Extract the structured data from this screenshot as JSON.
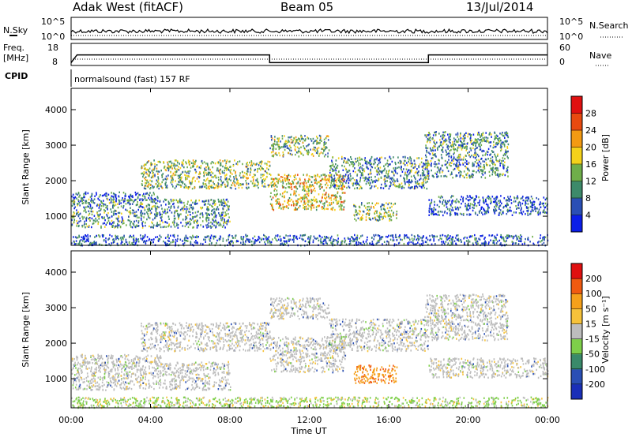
{
  "header": {
    "station": "Adak West (fitACF)",
    "beam": "Beam 05",
    "date": "13/Jul/2014"
  },
  "status_panel": {
    "left_labels": [
      "N.Sky",
      "Freq.",
      "[MHz]",
      "CPID"
    ],
    "right_labels": [
      "N.Search",
      "Nave"
    ],
    "nsky_ticks": [
      "10^5",
      "10^0"
    ],
    "nsearch_ticks": [
      "10^5",
      "10^0"
    ],
    "freq_ticks": [
      "18",
      "8"
    ],
    "nave_ticks": [
      "60",
      "0"
    ],
    "cpid_text": "normalsound (fast) 157 RF"
  },
  "x_axis": {
    "label": "Time UT",
    "ticks": [
      "00:00",
      "04:00",
      "08:00",
      "12:00",
      "16:00",
      "20:00",
      "00:00"
    ]
  },
  "power_panel": {
    "y_label": "Slant Range [km]",
    "y_ticks": [
      "4000",
      "3000",
      "2000",
      "1000"
    ],
    "colorbar_label": "Power [dB]",
    "colorbar_ticks": [
      "28",
      "24",
      "20",
      "16",
      "12",
      "8",
      "4"
    ]
  },
  "velocity_panel": {
    "y_label": "Slant Range [km]",
    "y_ticks": [
      "4000",
      "3000",
      "2000",
      "1000"
    ],
    "colorbar_label": "Velocity [m s⁻¹]",
    "colorbar_ticks": [
      "200",
      "100",
      "50",
      "15",
      "-15",
      "-50",
      "-100",
      "-200"
    ]
  },
  "chart_data": [
    {
      "type": "line",
      "panel": "frequency",
      "x_unit": "hours UT",
      "y_unit": "MHz",
      "ylim": [
        8,
        18
      ],
      "x": [
        0,
        0.3,
        10.0,
        10.0,
        18.0,
        18.0,
        24
      ],
      "y": [
        10,
        13.5,
        13.5,
        10,
        10,
        13.5,
        13.5
      ]
    },
    {
      "type": "heatmap",
      "panel": "power",
      "x_unit": "hours UT",
      "y_unit": "km",
      "xlim": [
        0,
        24
      ],
      "ylim": [
        180,
        4600
      ],
      "colorbar": {
        "unit": "dB",
        "ticks": [
          4,
          8,
          12,
          16,
          20,
          24,
          28
        ],
        "colors": [
          "#0b1ee8",
          "#2a4fb5",
          "#3d8a6a",
          "#6fae4a",
          "#f4d21a",
          "#f39a12",
          "#e84a10",
          "#e01010"
        ]
      },
      "echo_bands": [
        {
          "t0": 0.0,
          "t1": 4.5,
          "r0": 1450,
          "r1": 1700,
          "level": 1
        },
        {
          "t0": 0.0,
          "t1": 8.0,
          "r0": 700,
          "r1": 1500,
          "level": 2
        },
        {
          "t0": 3.5,
          "t1": 10.0,
          "r0": 1800,
          "r1": 2600,
          "level": 3
        },
        {
          "t0": 10.0,
          "t1": 13.8,
          "r0": 1200,
          "r1": 2200,
          "level": 4
        },
        {
          "t0": 10.0,
          "t1": 13.0,
          "r0": 2700,
          "r1": 3300,
          "level": 3
        },
        {
          "t0": 13.0,
          "t1": 18.0,
          "r0": 1800,
          "r1": 2700,
          "level": 2
        },
        {
          "t0": 14.2,
          "t1": 16.4,
          "r0": 900,
          "r1": 1400,
          "level": 3
        },
        {
          "t0": 18.0,
          "t1": 24.0,
          "r0": 1050,
          "r1": 1600,
          "level": 1
        },
        {
          "t0": 17.8,
          "t1": 22.0,
          "r0": 2100,
          "r1": 3400,
          "level": 2
        },
        {
          "t0": 0.0,
          "t1": 24.0,
          "r0": 200,
          "r1": 500,
          "level": 1
        }
      ]
    },
    {
      "type": "heatmap",
      "panel": "velocity",
      "x_unit": "hours UT",
      "y_unit": "km",
      "xlim": [
        0,
        24
      ],
      "ylim": [
        180,
        4600
      ],
      "colorbar": {
        "unit": "m s^-1",
        "ticks": [
          -200,
          -100,
          -50,
          -15,
          15,
          50,
          100,
          200
        ],
        "colors": [
          "#e01010",
          "#f05a10",
          "#f5a01a",
          "#f6c23a",
          "#bdbdbd",
          "#7ecf4a",
          "#3a8a6a",
          "#2a4fb5",
          "#1a2fb8"
        ]
      },
      "echo_bands": [
        {
          "t0": 0.0,
          "t1": 4.5,
          "r0": 1450,
          "r1": 1700,
          "level": "gray"
        },
        {
          "t0": 0.0,
          "t1": 8.0,
          "r0": 700,
          "r1": 1500,
          "level": "gray"
        },
        {
          "t0": 3.5,
          "t1": 10.0,
          "r0": 1800,
          "r1": 2600,
          "level": "gray"
        },
        {
          "t0": 10.0,
          "t1": 13.8,
          "r0": 1200,
          "r1": 2200,
          "level": "gray"
        },
        {
          "t0": 10.0,
          "t1": 13.0,
          "r0": 2700,
          "r1": 3300,
          "level": "gray"
        },
        {
          "t0": 13.0,
          "t1": 18.0,
          "r0": 1800,
          "r1": 2700,
          "level": "gray"
        },
        {
          "t0": 14.2,
          "t1": 16.4,
          "r0": 900,
          "r1": 1400,
          "level": "orange"
        },
        {
          "t0": 18.0,
          "t1": 24.0,
          "r0": 1050,
          "r1": 1600,
          "level": "gray"
        },
        {
          "t0": 17.8,
          "t1": 22.0,
          "r0": 2100,
          "r1": 3400,
          "level": "gray"
        },
        {
          "t0": 0.0,
          "t1": 24.0,
          "r0": 200,
          "r1": 500,
          "level": "green"
        }
      ]
    }
  ]
}
